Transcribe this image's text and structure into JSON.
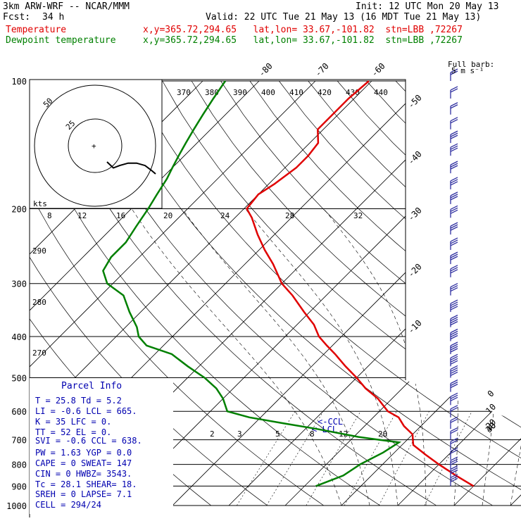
{
  "header": {
    "model": "3km ARW-WRF -- NCAR/MMM",
    "init": "Init: 12 UTC Mon 20 May 13",
    "fcst_label": "Fcst:",
    "fcst_value": "34 h",
    "valid": "Valid: 22 UTC Tue 21 May 13 (16 MDT Tue 21 May 13)",
    "temp_label": "Temperature",
    "temp_info": "x,y=365.72,294.65   lat,lon= 33.67,-101.82  stn=LBB ,72267",
    "dew_label": "Dewpoint temperature",
    "dew_info": "x,y=365.72,294.65   lat,lon= 33.67,-101.82  stn=LBB ,72267"
  },
  "barb_legend": {
    "line1": "Full barb:",
    "line2": "5 m s⁻¹"
  },
  "hodograph": {
    "unit": "kts",
    "ring_labels": [
      "25",
      "50"
    ],
    "speed_ticks": [
      "8",
      "12",
      "16",
      "20",
      "24",
      "28",
      "32"
    ]
  },
  "labels": {
    "theta_e_top": [
      "370",
      "380",
      "390",
      "400",
      "410",
      "420",
      "430",
      "440"
    ],
    "theta_left": [
      "290",
      "280",
      "270"
    ],
    "ccl": "<-CCL",
    "lcl": "<-LCL",
    "mixing": [
      "2",
      "3",
      "5",
      "8",
      "12",
      "20"
    ]
  },
  "parcel_info": {
    "title": "Parcel Info",
    "rows": [
      "T  =   25.8  Td =   5.2",
      "LI =   -0.6  LCL =  665.",
      "K  =    35   LFC =    0.",
      "TT =    52   EL  =    0.",
      "SVI =  -0.6  CCL =  638.",
      "PW =   1.63  YGP =   0.0",
      "CAPE =    0  SWEAT=  147",
      "CIN  =    0  HWBZ= 3543.",
      "Tc  =  28.1  SHEAR=  18.",
      "SREH =    0  LAPSE=  7.1",
      "CELL = 294/24"
    ]
  },
  "chart_data": {
    "type": "line",
    "title": "",
    "xlabel": "",
    "ylabel": "",
    "y_axis": "pressure (hPa), log scale, inverted",
    "pressure_ticks": [
      100,
      200,
      300,
      400,
      500,
      600,
      700,
      800,
      900,
      1000
    ],
    "temperature_ticks": [
      -80,
      -70,
      -60,
      -50,
      -40,
      -30,
      -20,
      -10,
      0,
      10,
      20,
      30,
      40
    ],
    "ylim": [
      1000,
      100
    ],
    "series": [
      {
        "name": "Temperature",
        "color": "#e00000",
        "pressure": [
          900,
          850,
          800,
          760,
          720,
          700,
          680,
          650,
          620,
          600,
          560,
          530,
          500,
          470,
          440,
          420,
          400,
          375,
          350,
          320,
          300,
          270,
          250,
          230,
          210,
          200,
          185,
          175,
          160,
          150,
          140,
          130,
          120,
          110,
          100
        ],
        "temperature": [
          30.0,
          25.0,
          20.0,
          16.0,
          12.0,
          11.0,
          10.0,
          7.0,
          4.5,
          1.5,
          -2.5,
          -6.5,
          -10.0,
          -14.0,
          -18.0,
          -21.0,
          -24.0,
          -27.0,
          -31.0,
          -36.0,
          -40.0,
          -45.0,
          -49.0,
          -53.0,
          -57.0,
          -59.5,
          -60.0,
          -59.0,
          -58.0,
          -58.0,
          -58.5,
          -61.0,
          -61.0,
          -61.0,
          -60.5
        ]
      },
      {
        "name": "Dewpoint temperature",
        "color": "#008000",
        "pressure": [
          900,
          850,
          800,
          750,
          710,
          700,
          690,
          660,
          640,
          620,
          600,
          560,
          530,
          500,
          470,
          440,
          420,
          400,
          380,
          350,
          320,
          300,
          280,
          260,
          240,
          220,
          200,
          185,
          170,
          160,
          150,
          140,
          130,
          120,
          110,
          100
        ],
        "temperature": [
          2.0,
          5.0,
          6.0,
          8.0,
          9.0,
          5.0,
          1.0,
          -8.0,
          -15.0,
          -22.0,
          -27.0,
          -30.0,
          -33.0,
          -37.0,
          -42.0,
          -47.0,
          -53.0,
          -56.0,
          -58.0,
          -62.0,
          -66.0,
          -71.0,
          -74.0,
          -75.0,
          -75.0,
          -76.0,
          -77.0,
          -78.0,
          -79.0,
          -80.0,
          -81.0,
          -82.0,
          -83.0,
          -84.0,
          -85.0,
          -86.0
        ]
      }
    ],
    "hodograph_trace": [
      [
        0,
        0
      ],
      [
        1.5,
        -2.5
      ],
      [
        3,
        -1.5
      ],
      [
        5,
        -0.5
      ],
      [
        7,
        -0.5
      ],
      [
        9,
        -1.5
      ],
      [
        10.5,
        -3.5
      ],
      [
        11.5,
        -5
      ]
    ],
    "wind_barbs": [
      {
        "pressure": 900,
        "speed": 15,
        "dir": 180
      },
      {
        "pressure": 860,
        "speed": 15,
        "dir": 190
      },
      {
        "pressure": 820,
        "speed": 15,
        "dir": 200
      },
      {
        "pressure": 780,
        "speed": 10,
        "dir": 210
      },
      {
        "pressure": 740,
        "speed": 10,
        "dir": 220
      },
      {
        "pressure": 700,
        "speed": 10,
        "dir": 230
      },
      {
        "pressure": 660,
        "speed": 10,
        "dir": 240
      },
      {
        "pressure": 620,
        "speed": 10,
        "dir": 250
      },
      {
        "pressure": 580,
        "speed": 15,
        "dir": 260
      },
      {
        "pressure": 540,
        "speed": 15,
        "dir": 260
      },
      {
        "pressure": 500,
        "speed": 20,
        "dir": 260
      },
      {
        "pressure": 470,
        "speed": 20,
        "dir": 260
      },
      {
        "pressure": 440,
        "speed": 20,
        "dir": 260
      },
      {
        "pressure": 410,
        "speed": 20,
        "dir": 260
      },
      {
        "pressure": 380,
        "speed": 20,
        "dir": 260
      },
      {
        "pressure": 350,
        "speed": 20,
        "dir": 260
      },
      {
        "pressure": 320,
        "speed": 15,
        "dir": 260
      },
      {
        "pressure": 290,
        "speed": 15,
        "dir": 260
      },
      {
        "pressure": 270,
        "speed": 15,
        "dir": 260
      },
      {
        "pressure": 250,
        "speed": 15,
        "dir": 260
      },
      {
        "pressure": 230,
        "speed": 15,
        "dir": 260
      },
      {
        "pressure": 210,
        "speed": 15,
        "dir": 260
      },
      {
        "pressure": 195,
        "speed": 15,
        "dir": 260
      },
      {
        "pressure": 180,
        "speed": 15,
        "dir": 260
      },
      {
        "pressure": 165,
        "speed": 15,
        "dir": 260
      },
      {
        "pressure": 150,
        "speed": 15,
        "dir": 260
      },
      {
        "pressure": 140,
        "speed": 15,
        "dir": 260
      },
      {
        "pressure": 130,
        "speed": 10,
        "dir": 260
      },
      {
        "pressure": 120,
        "speed": 10,
        "dir": 260
      },
      {
        "pressure": 110,
        "speed": 10,
        "dir": 260
      },
      {
        "pressure": 100,
        "speed": 10,
        "dir": 260
      }
    ]
  }
}
